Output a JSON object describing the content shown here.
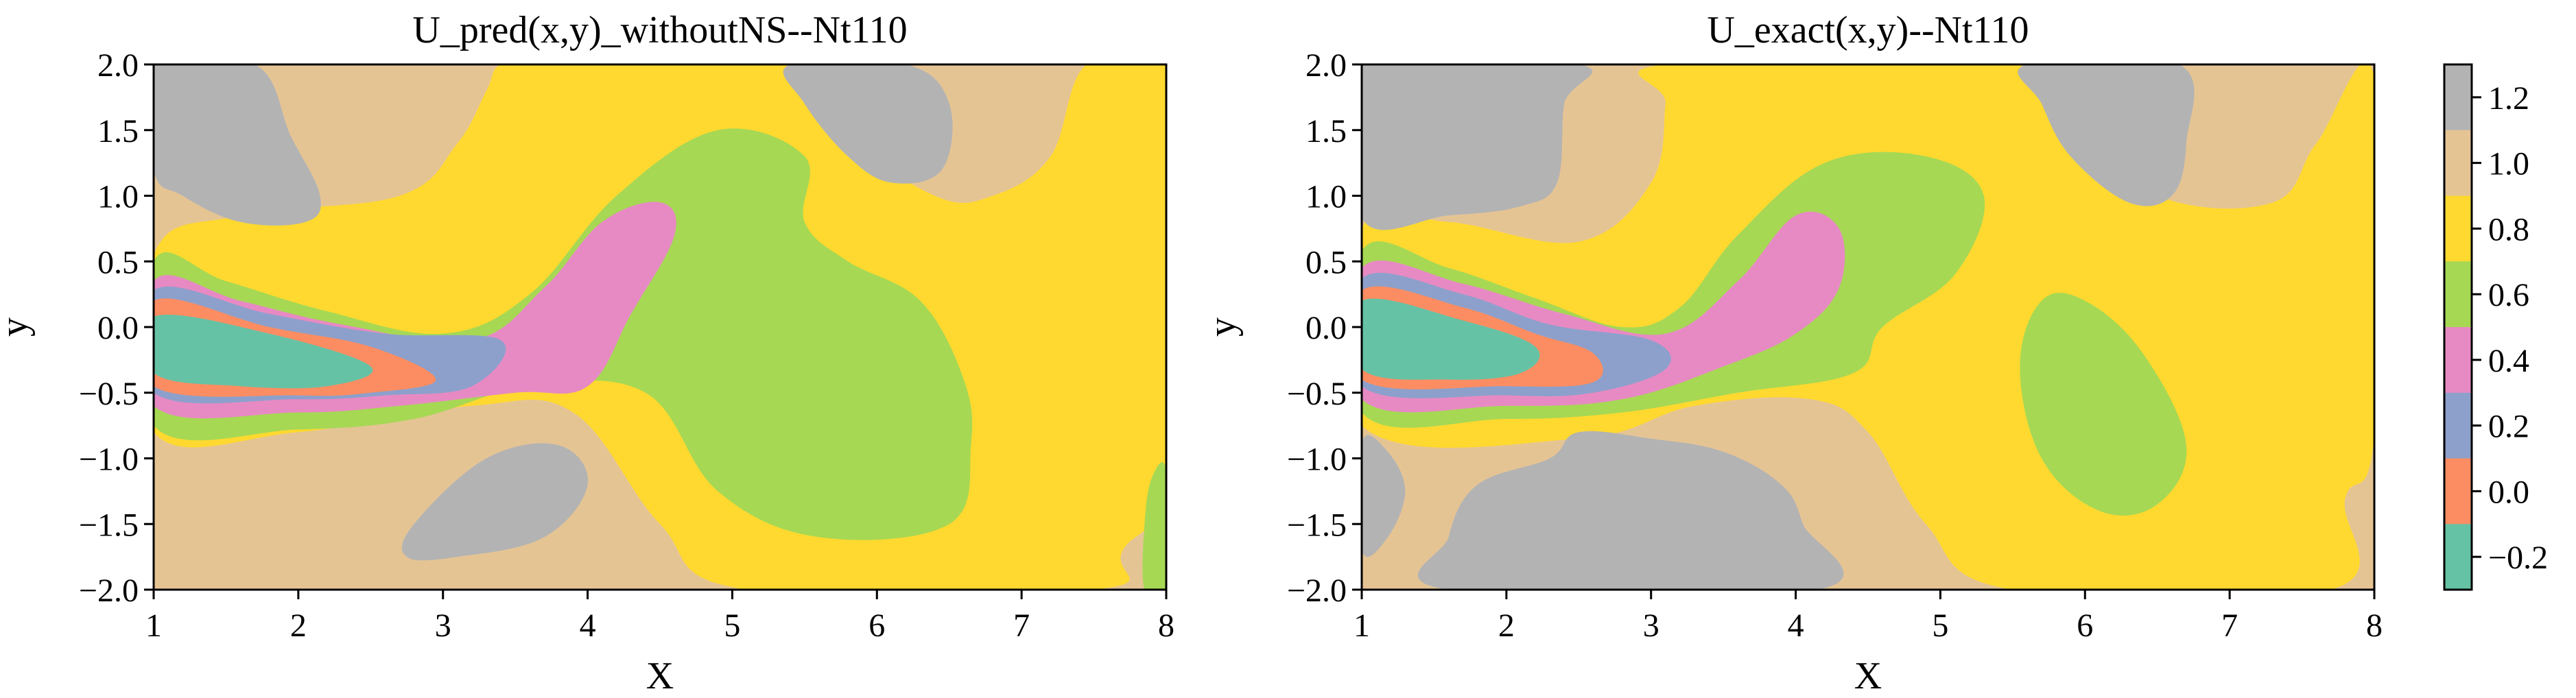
{
  "chart_data": [
    {
      "type": "contour",
      "title": "U_pred(x,y)_withoutNS--Nt110",
      "xlabel": "X",
      "ylabel": "y",
      "xlim": [
        1,
        8
      ],
      "ylim": [
        -2,
        2
      ],
      "xticks": [
        "1",
        "2",
        "3",
        "4",
        "5",
        "6",
        "7",
        "8"
      ],
      "yticks": [
        "2.0",
        "1.5",
        "1.0",
        "0.5",
        "0.0",
        "−0.5",
        "−1.0",
        "−1.5",
        "−2.0"
      ],
      "regions": [
        {
          "level": 0.8,
          "points": [
            [
              3.7,
              2.0
            ],
            [
              5.6,
              2.0
            ],
            [
              5.75,
              1.5
            ],
            [
              6.4,
              1.0
            ],
            [
              6.8,
              1.0
            ],
            [
              7.2,
              1.3
            ],
            [
              7.45,
              2.0
            ],
            [
              8.0,
              2.0
            ],
            [
              8.0,
              -1.0
            ],
            [
              7.7,
              -1.7
            ],
            [
              7.5,
              -2.0
            ],
            [
              5.1,
              -2.0
            ],
            [
              4.5,
              -1.5
            ],
            [
              3.9,
              -0.65
            ],
            [
              3.2,
              -0.6
            ],
            [
              2.0,
              -0.8
            ],
            [
              1.0,
              -0.8
            ],
            [
              1.0,
              0.55
            ],
            [
              1.6,
              0.85
            ],
            [
              2.7,
              1.0
            ],
            [
              3.1,
              1.4
            ],
            [
              3.3,
              1.8
            ],
            [
              3.4,
              2.0
            ]
          ]
        },
        {
          "level": 0.6,
          "points": [
            [
              1.0,
              0.5
            ],
            [
              1.5,
              0.35
            ],
            [
              2.2,
              0.12
            ],
            [
              3.0,
              -0.05
            ],
            [
              3.6,
              0.25
            ],
            [
              4.2,
              1.0
            ],
            [
              4.9,
              1.5
            ],
            [
              5.5,
              1.3
            ],
            [
              5.5,
              0.8
            ],
            [
              5.8,
              0.5
            ],
            [
              6.3,
              0.2
            ],
            [
              6.6,
              -0.4
            ],
            [
              6.65,
              -0.9
            ],
            [
              6.5,
              -1.5
            ],
            [
              5.6,
              -1.6
            ],
            [
              4.9,
              -1.25
            ],
            [
              4.4,
              -0.5
            ],
            [
              3.6,
              -0.45
            ],
            [
              2.8,
              -0.7
            ],
            [
              2.0,
              -0.78
            ],
            [
              1.0,
              -0.75
            ]
          ]
        },
        {
          "level": 0.4,
          "points": [
            [
              1.0,
              0.35
            ],
            [
              1.6,
              0.2
            ],
            [
              2.3,
              0.02
            ],
            [
              3.2,
              -0.1
            ],
            [
              3.7,
              0.3
            ],
            [
              4.1,
              0.8
            ],
            [
              4.5,
              0.95
            ],
            [
              4.6,
              0.7
            ],
            [
              4.3,
              0.1
            ],
            [
              4.0,
              -0.45
            ],
            [
              3.5,
              -0.5
            ],
            [
              2.7,
              -0.6
            ],
            [
              2.0,
              -0.65
            ],
            [
              1.0,
              -0.6
            ]
          ]
        },
        {
          "level": 0.2,
          "points": [
            [
              1.0,
              0.28
            ],
            [
              1.8,
              0.1
            ],
            [
              2.6,
              -0.05
            ],
            [
              3.4,
              -0.1
            ],
            [
              3.2,
              -0.45
            ],
            [
              2.6,
              -0.52
            ],
            [
              2.0,
              -0.55
            ],
            [
              1.0,
              -0.5
            ]
          ]
        },
        {
          "level": 0.0,
          "points": [
            [
              1.0,
              0.2
            ],
            [
              1.8,
              0.0
            ],
            [
              2.5,
              -0.15
            ],
            [
              2.95,
              -0.4
            ],
            [
              2.5,
              -0.5
            ],
            [
              2.0,
              -0.52
            ],
            [
              1.0,
              -0.45
            ]
          ]
        },
        {
          "level": -0.2,
          "points": [
            [
              1.0,
              0.08
            ],
            [
              1.8,
              -0.05
            ],
            [
              2.5,
              -0.3
            ],
            [
              2.2,
              -0.45
            ],
            [
              1.6,
              -0.45
            ],
            [
              1.0,
              -0.35
            ]
          ]
        },
        {
          "level": 1.2,
          "points": [
            [
              1.0,
              2.0
            ],
            [
              1.7,
              2.0
            ],
            [
              1.95,
              1.45
            ],
            [
              2.15,
              1.0
            ],
            [
              2.05,
              0.8
            ],
            [
              1.6,
              0.8
            ],
            [
              1.2,
              1.0
            ],
            [
              1.0,
              1.2
            ]
          ]
        },
        {
          "level": 1.2,
          "points": [
            [
              5.4,
              2.0
            ],
            [
              6.2,
              2.0
            ],
            [
              6.5,
              1.7
            ],
            [
              6.45,
              1.2
            ],
            [
              6.1,
              1.1
            ],
            [
              5.8,
              1.3
            ],
            [
              5.5,
              1.7
            ]
          ]
        },
        {
          "level": 1.2,
          "points": [
            [
              2.8,
              -1.5
            ],
            [
              3.3,
              -1.0
            ],
            [
              3.8,
              -0.9
            ],
            [
              4.0,
              -1.2
            ],
            [
              3.7,
              -1.6
            ],
            [
              3.1,
              -1.75
            ],
            [
              2.75,
              -1.75
            ]
          ]
        },
        {
          "level": 0.6,
          "points": [
            [
              7.9,
              -1.15
            ],
            [
              8.0,
              -1.1
            ],
            [
              8.0,
              -2.0
            ],
            [
              7.85,
              -2.0
            ],
            [
              7.85,
              -1.5
            ]
          ]
        }
      ]
    },
    {
      "type": "contour",
      "title": "U_exact(x,y)--Nt110",
      "xlabel": "X",
      "ylabel": "y",
      "xlim": [
        1,
        8
      ],
      "ylim": [
        -2,
        2
      ],
      "xticks": [
        "1",
        "2",
        "3",
        "4",
        "5",
        "6",
        "7",
        "8"
      ],
      "yticks": [
        "2.0",
        "1.5",
        "1.0",
        "0.5",
        "0.0",
        "−0.5",
        "−1.0",
        "−1.5",
        "−2.0"
      ],
      "regions": [
        {
          "level": 0.8,
          "points": [
            [
              3.1,
              2.0
            ],
            [
              5.5,
              2.0
            ],
            [
              5.8,
              1.6
            ],
            [
              6.5,
              1.0
            ],
            [
              7.3,
              0.95
            ],
            [
              7.6,
              1.4
            ],
            [
              8.0,
              1.9
            ],
            [
              8.0,
              -0.8
            ],
            [
              7.8,
              -1.3
            ],
            [
              7.7,
              -2.0
            ],
            [
              5.5,
              -2.0
            ],
            [
              4.9,
              -1.5
            ],
            [
              4.5,
              -0.8
            ],
            [
              4.1,
              -0.55
            ],
            [
              3.3,
              -0.6
            ],
            [
              2.5,
              -0.85
            ],
            [
              1.0,
              -0.75
            ],
            [
              1.0,
              0.75
            ],
            [
              1.6,
              0.8
            ],
            [
              2.5,
              0.65
            ],
            [
              3.0,
              1.1
            ],
            [
              3.1,
              1.7
            ]
          ]
        },
        {
          "level": 0.6,
          "points": [
            [
              1.0,
              0.58
            ],
            [
              1.6,
              0.45
            ],
            [
              2.2,
              0.22
            ],
            [
              2.8,
              0.0
            ],
            [
              3.2,
              0.15
            ],
            [
              3.6,
              0.7
            ],
            [
              4.2,
              1.25
            ],
            [
              4.9,
              1.3
            ],
            [
              5.3,
              1.0
            ],
            [
              5.1,
              0.4
            ],
            [
              4.6,
              0.0
            ],
            [
              4.4,
              -0.35
            ],
            [
              3.6,
              -0.5
            ],
            [
              2.8,
              -0.65
            ],
            [
              2.0,
              -0.7
            ],
            [
              1.0,
              -0.65
            ]
          ]
        },
        {
          "level": 0.4,
          "points": [
            [
              1.0,
              0.45
            ],
            [
              1.7,
              0.33
            ],
            [
              2.4,
              0.1
            ],
            [
              3.1,
              -0.05
            ],
            [
              3.6,
              0.35
            ],
            [
              4.0,
              0.85
            ],
            [
              4.3,
              0.75
            ],
            [
              4.3,
              0.3
            ],
            [
              4.0,
              -0.05
            ],
            [
              3.5,
              -0.3
            ],
            [
              2.8,
              -0.55
            ],
            [
              2.0,
              -0.6
            ],
            [
              1.0,
              -0.55
            ]
          ]
        },
        {
          "level": 0.2,
          "points": [
            [
              1.0,
              0.37
            ],
            [
              1.7,
              0.25
            ],
            [
              2.3,
              0.02
            ],
            [
              3.0,
              -0.1
            ],
            [
              3.1,
              -0.32
            ],
            [
              2.6,
              -0.5
            ],
            [
              2.0,
              -0.52
            ],
            [
              1.0,
              -0.45
            ]
          ]
        },
        {
          "level": 0.0,
          "points": [
            [
              1.0,
              0.28
            ],
            [
              1.7,
              0.15
            ],
            [
              2.2,
              -0.05
            ],
            [
              2.6,
              -0.2
            ],
            [
              2.6,
              -0.42
            ],
            [
              2.0,
              -0.45
            ],
            [
              1.0,
              -0.4
            ]
          ]
        },
        {
          "level": -0.2,
          "points": [
            [
              1.0,
              0.2
            ],
            [
              1.7,
              0.05
            ],
            [
              2.2,
              -0.15
            ],
            [
              2.1,
              -0.35
            ],
            [
              1.6,
              -0.4
            ],
            [
              1.0,
              -0.32
            ]
          ]
        },
        {
          "level": 0.6,
          "points": [
            [
              5.7,
              0.2
            ],
            [
              6.0,
              0.2
            ],
            [
              6.4,
              -0.2
            ],
            [
              6.7,
              -0.9
            ],
            [
              6.5,
              -1.35
            ],
            [
              6.1,
              -1.4
            ],
            [
              5.7,
              -1.0
            ],
            [
              5.55,
              -0.3
            ]
          ]
        },
        {
          "level": 1.2,
          "points": [
            [
              1.0,
              2.0
            ],
            [
              2.5,
              2.0
            ],
            [
              2.4,
              1.7
            ],
            [
              2.35,
              1.1
            ],
            [
              2.1,
              0.92
            ],
            [
              1.6,
              0.85
            ],
            [
              1.0,
              0.83
            ]
          ]
        },
        {
          "level": 1.2,
          "points": [
            [
              5.6,
              2.0
            ],
            [
              6.65,
              2.0
            ],
            [
              6.7,
              1.4
            ],
            [
              6.6,
              1.0
            ],
            [
              6.3,
              0.95
            ],
            [
              5.9,
              1.3
            ],
            [
              5.7,
              1.7
            ]
          ]
        },
        {
          "level": 1.2,
          "points": [
            [
              1.6,
              -2.0
            ],
            [
              1.6,
              -1.6
            ],
            [
              1.8,
              -1.2
            ],
            [
              2.3,
              -1.0
            ],
            [
              2.5,
              -0.8
            ],
            [
              3.0,
              -0.85
            ],
            [
              3.5,
              -0.95
            ],
            [
              3.9,
              -1.2
            ],
            [
              4.05,
              -1.5
            ],
            [
              4.15,
              -2.0
            ]
          ]
        },
        {
          "level": 1.2,
          "points": [
            [
              1.0,
              -0.88
            ],
            [
              1.18,
              -0.95
            ],
            [
              1.3,
              -1.25
            ],
            [
              1.18,
              -1.6
            ],
            [
              1.0,
              -1.7
            ]
          ]
        }
      ]
    }
  ],
  "colorbar": {
    "labels": [
      "1.2",
      "1.0",
      "0.8",
      "0.6",
      "0.4",
      "0.2",
      "0.0",
      "−0.2"
    ],
    "levels": [
      1.2,
      1.0,
      0.8,
      0.6,
      0.4,
      0.2,
      0.0,
      -0.2
    ],
    "colors": [
      "#b3b3b3",
      "#e5c494",
      "#ffd92f",
      "#a6d854",
      "#e78ac3",
      "#8da0cb",
      "#fc8d62",
      "#66c2a5"
    ]
  },
  "background_level": 1.0
}
